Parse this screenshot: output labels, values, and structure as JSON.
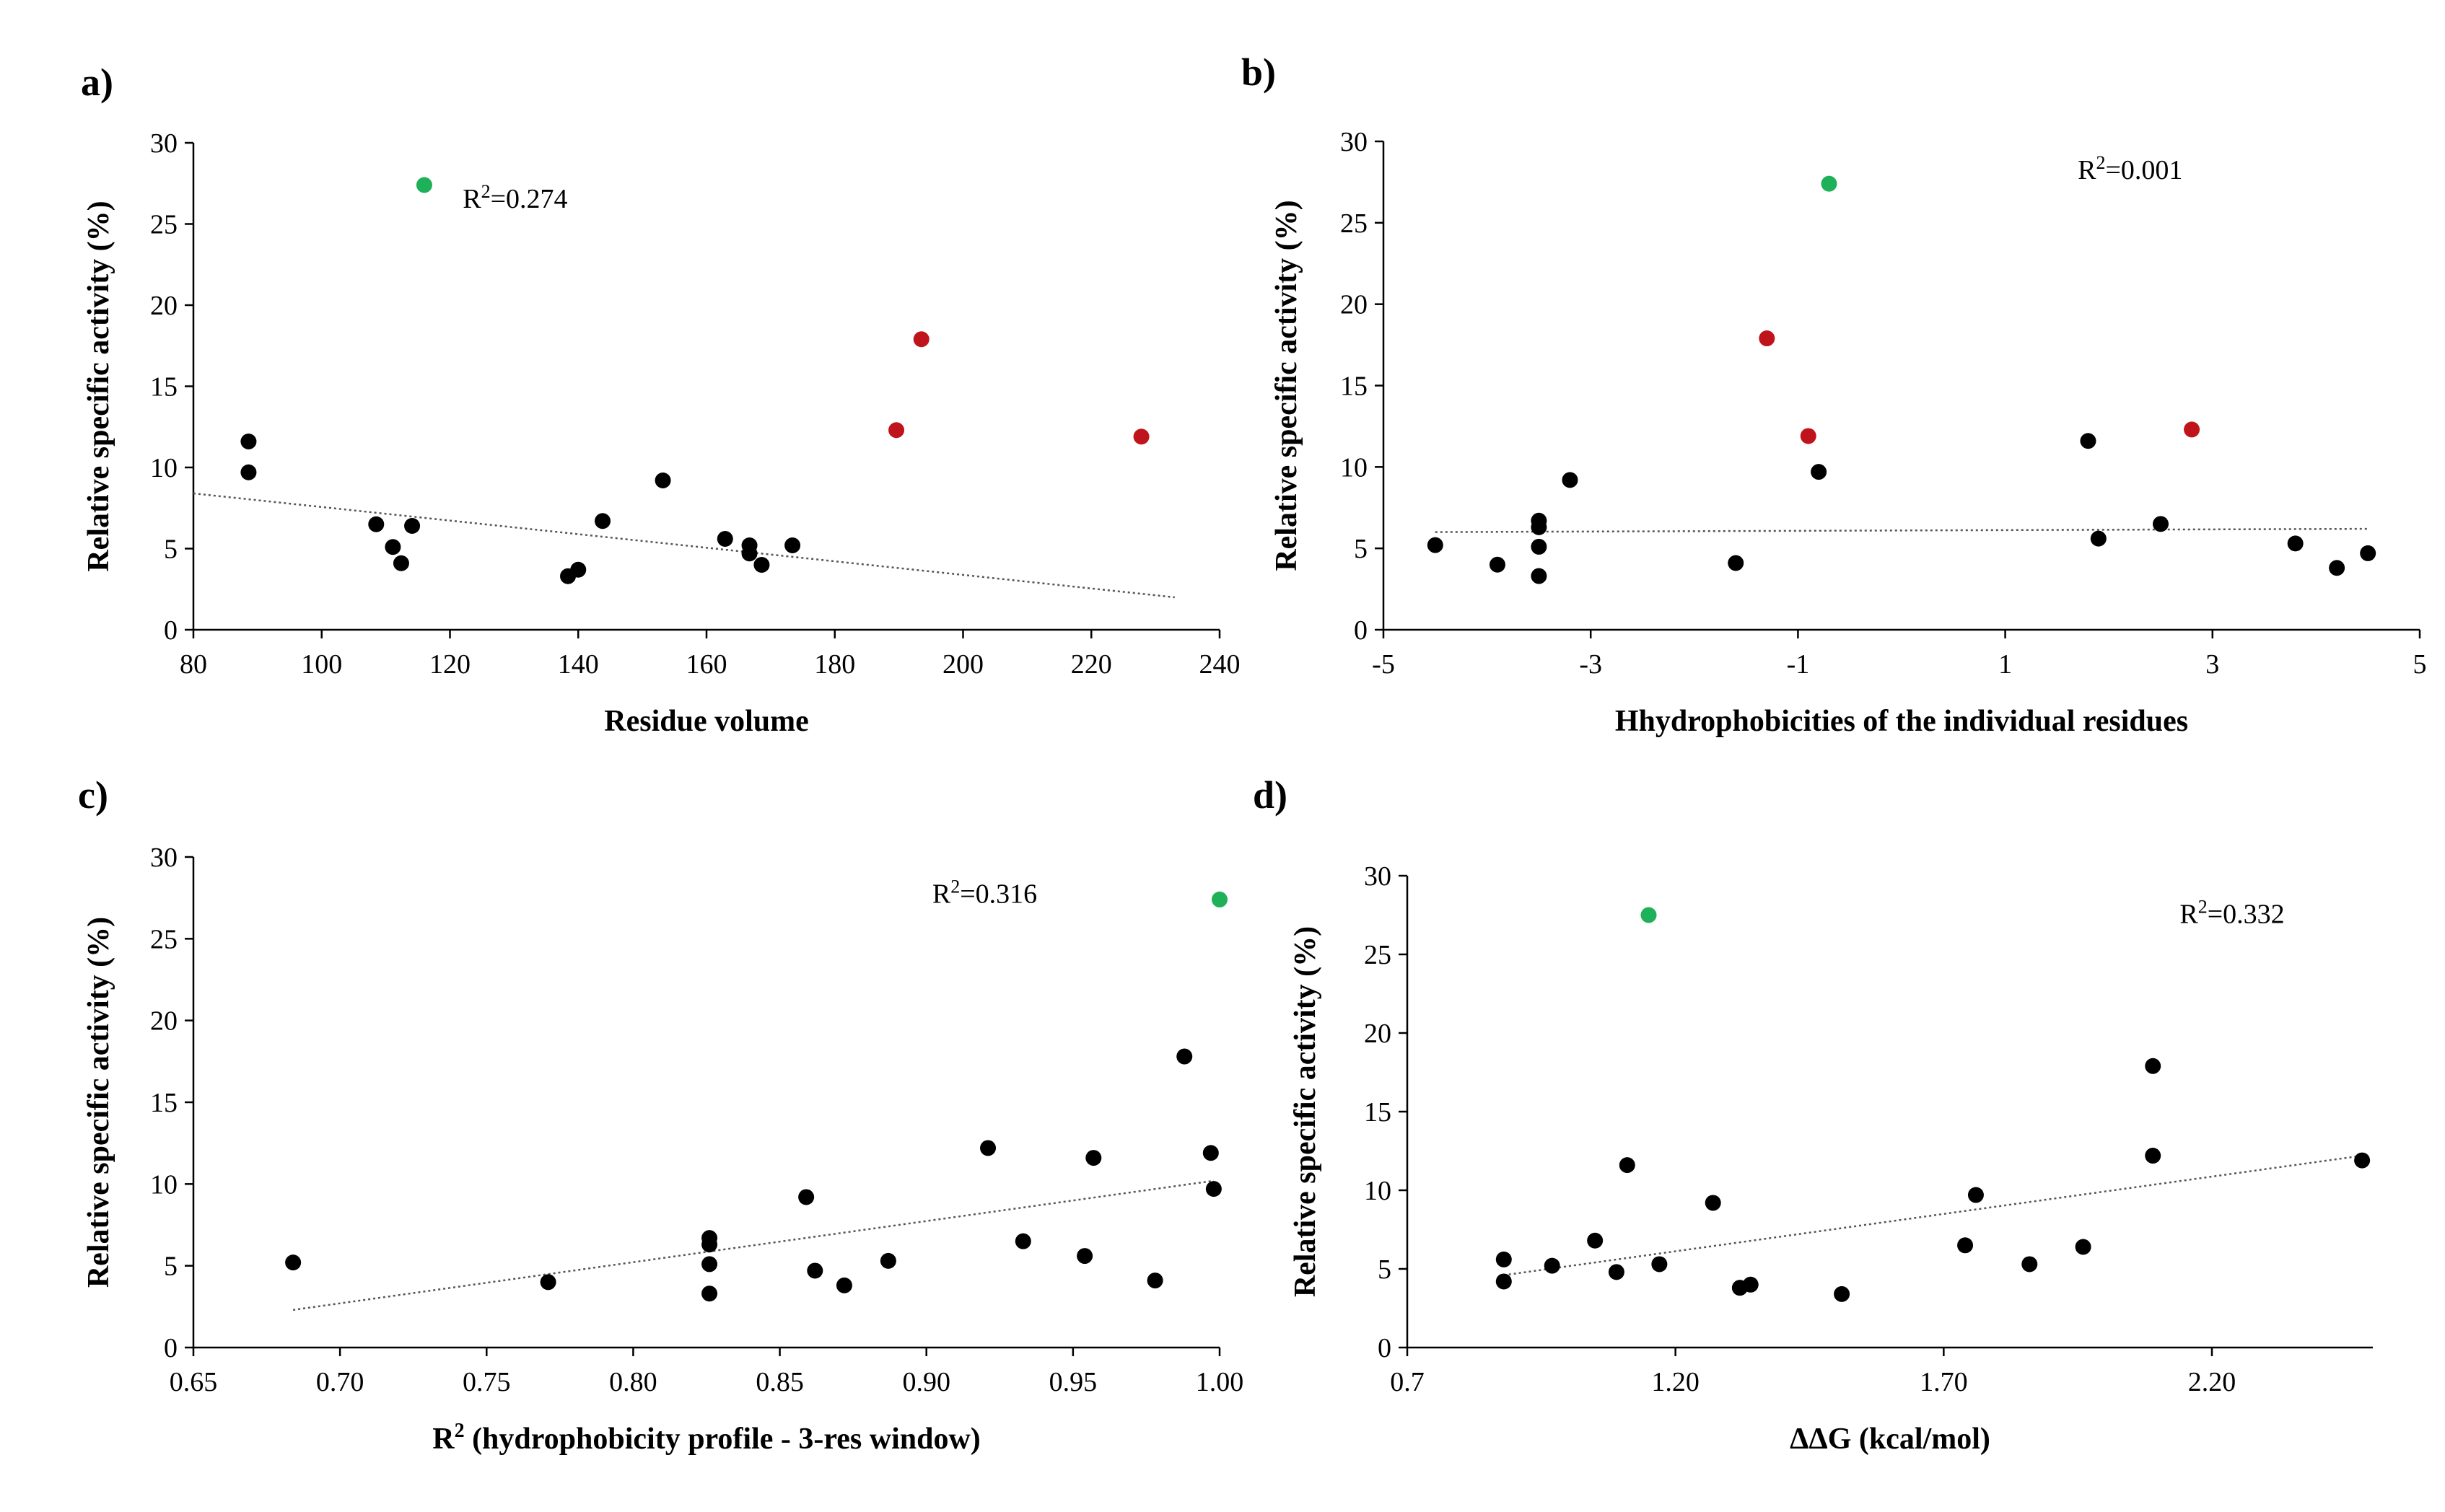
{
  "figure": {
    "colors": {
      "default": "#000000",
      "green": "#1fb15a",
      "red": "#c0141c",
      "trend": "#555555"
    }
  },
  "chart_data": [
    {
      "type": "scatter",
      "panel_label": "a)",
      "xlabel": "Residue volume",
      "ylabel": "Relative specific activity (%)",
      "xlim": [
        80,
        240
      ],
      "ylim": [
        0,
        30
      ],
      "xticks": [
        80,
        100,
        120,
        140,
        160,
        180,
        200,
        220,
        240
      ],
      "xtick_labels": [
        "80",
        "100",
        "120",
        "140",
        "160",
        "180",
        "200",
        "220",
        "240"
      ],
      "yticks": [
        0,
        5,
        10,
        15,
        20,
        25,
        30
      ],
      "ytick_labels": [
        "0",
        "5",
        "10",
        "15",
        "20",
        "25",
        "30"
      ],
      "r2_prefix": "R",
      "r2_exp": "2",
      "r2_value": "=0.274",
      "r2_pos": [
        122,
        26
      ],
      "trendline": {
        "x": [
          80,
          233
        ],
        "y": [
          8.4,
          2.0
        ]
      },
      "points": [
        {
          "x": 116,
          "y": 27.4,
          "color": "green"
        },
        {
          "x": 193.5,
          "y": 17.9,
          "color": "red"
        },
        {
          "x": 189.6,
          "y": 12.3,
          "color": "red"
        },
        {
          "x": 227.8,
          "y": 11.9,
          "color": "red"
        },
        {
          "x": 88.6,
          "y": 11.6,
          "color": "default"
        },
        {
          "x": 88.6,
          "y": 9.7,
          "color": "default"
        },
        {
          "x": 108.5,
          "y": 6.5,
          "color": "default"
        },
        {
          "x": 111.1,
          "y": 5.1,
          "color": "default"
        },
        {
          "x": 112.4,
          "y": 4.1,
          "color": "default"
        },
        {
          "x": 114.1,
          "y": 6.4,
          "color": "default"
        },
        {
          "x": 138.4,
          "y": 3.3,
          "color": "default"
        },
        {
          "x": 140.0,
          "y": 3.7,
          "color": "default"
        },
        {
          "x": 143.8,
          "y": 6.7,
          "color": "default"
        },
        {
          "x": 153.2,
          "y": 9.2,
          "color": "default"
        },
        {
          "x": 162.9,
          "y": 5.6,
          "color": "default"
        },
        {
          "x": 166.7,
          "y": 5.2,
          "color": "default"
        },
        {
          "x": 166.7,
          "y": 4.7,
          "color": "default"
        },
        {
          "x": 168.6,
          "y": 4.0,
          "color": "default"
        },
        {
          "x": 173.4,
          "y": 5.2,
          "color": "default"
        }
      ]
    },
    {
      "type": "scatter",
      "panel_label": "b)",
      "xlabel": "Hhydrophobicities of the individual residues",
      "ylabel": "Relative specific activity (%)",
      "xlim": [
        -5,
        5
      ],
      "ylim": [
        0,
        30
      ],
      "xticks": [
        -5,
        -3,
        -1,
        1,
        3,
        5
      ],
      "xtick_labels": [
        "-5",
        "-3",
        "-1",
        "1",
        "3",
        "5"
      ],
      "yticks": [
        0,
        5,
        10,
        15,
        20,
        25,
        30
      ],
      "ytick_labels": [
        "0",
        "5",
        "10",
        "15",
        "20",
        "25",
        "30"
      ],
      "r2_prefix": "R",
      "r2_exp": "2",
      "r2_value": "=0.001",
      "r2_pos": [
        1.7,
        27.7
      ],
      "trendline": {
        "x": [
          -4.5,
          4.5
        ],
        "y": [
          6.0,
          6.2
        ]
      },
      "points": [
        {
          "x": -0.7,
          "y": 27.4,
          "color": "green"
        },
        {
          "x": -1.3,
          "y": 17.9,
          "color": "red"
        },
        {
          "x": -0.9,
          "y": 11.9,
          "color": "red"
        },
        {
          "x": 2.8,
          "y": 12.3,
          "color": "red"
        },
        {
          "x": -4.5,
          "y": 5.2,
          "color": "default"
        },
        {
          "x": -3.9,
          "y": 4.0,
          "color": "default"
        },
        {
          "x": -3.5,
          "y": 6.7,
          "color": "default"
        },
        {
          "x": -3.5,
          "y": 6.3,
          "color": "default"
        },
        {
          "x": -3.5,
          "y": 5.1,
          "color": "default"
        },
        {
          "x": -3.5,
          "y": 3.3,
          "color": "default"
        },
        {
          "x": -3.2,
          "y": 9.2,
          "color": "default"
        },
        {
          "x": -1.6,
          "y": 4.1,
          "color": "default"
        },
        {
          "x": -0.8,
          "y": 9.7,
          "color": "default"
        },
        {
          "x": 1.8,
          "y": 11.6,
          "color": "default"
        },
        {
          "x": 1.9,
          "y": 5.6,
          "color": "default"
        },
        {
          "x": 2.5,
          "y": 6.5,
          "color": "default"
        },
        {
          "x": 3.8,
          "y": 5.3,
          "color": "default"
        },
        {
          "x": 4.2,
          "y": 3.8,
          "color": "default"
        },
        {
          "x": 4.5,
          "y": 4.7,
          "color": "default"
        }
      ]
    },
    {
      "type": "scatter",
      "panel_label": "c)",
      "xlabel": "R",
      "xlabel_sup": "2",
      "xlabel_rest": " (hydrophobicity profile - 3-res window)",
      "ylabel": "Relative specific activity (%)",
      "xlim": [
        0.65,
        1.0
      ],
      "ylim": [
        0,
        30
      ],
      "xticks": [
        0.65,
        0.7,
        0.75,
        0.8,
        0.85,
        0.9,
        0.95,
        1.0
      ],
      "xtick_labels": [
        "0.65",
        "0.70",
        "0.75",
        "0.80",
        "0.85",
        "0.90",
        "0.95",
        "1.00"
      ],
      "yticks": [
        0,
        5,
        10,
        15,
        20,
        25,
        30
      ],
      "ytick_labels": [
        "0",
        "5",
        "10",
        "15",
        "20",
        "25",
        "30"
      ],
      "r2_prefix": "R",
      "r2_exp": "2",
      "r2_value": "=0.316",
      "r2_pos": [
        0.902,
        27.2
      ],
      "trendline": {
        "x": [
          0.684,
          0.998
        ],
        "y": [
          2.3,
          10.2
        ]
      },
      "points": [
        {
          "x": 1.0,
          "y": 27.4,
          "color": "green"
        },
        {
          "x": 0.988,
          "y": 17.8,
          "color": "default"
        },
        {
          "x": 0.921,
          "y": 12.2,
          "color": "default"
        },
        {
          "x": 0.957,
          "y": 11.6,
          "color": "default"
        },
        {
          "x": 0.997,
          "y": 11.9,
          "color": "default"
        },
        {
          "x": 0.998,
          "y": 9.7,
          "color": "default"
        },
        {
          "x": 0.859,
          "y": 9.2,
          "color": "default"
        },
        {
          "x": 0.684,
          "y": 5.2,
          "color": "default"
        },
        {
          "x": 0.771,
          "y": 4.0,
          "color": "default"
        },
        {
          "x": 0.826,
          "y": 6.7,
          "color": "default"
        },
        {
          "x": 0.826,
          "y": 6.3,
          "color": "default"
        },
        {
          "x": 0.826,
          "y": 5.1,
          "color": "default"
        },
        {
          "x": 0.826,
          "y": 3.3,
          "color": "default"
        },
        {
          "x": 0.862,
          "y": 4.7,
          "color": "default"
        },
        {
          "x": 0.872,
          "y": 3.8,
          "color": "default"
        },
        {
          "x": 0.887,
          "y": 5.3,
          "color": "default"
        },
        {
          "x": 0.933,
          "y": 6.5,
          "color": "default"
        },
        {
          "x": 0.954,
          "y": 5.6,
          "color": "default"
        },
        {
          "x": 0.978,
          "y": 4.1,
          "color": "default"
        }
      ]
    },
    {
      "type": "scatter",
      "panel_label": "d)",
      "xlabel": "ΔΔG (kcal/mol)",
      "ylabel": "Relative specific activity (%)",
      "xlim": [
        0.7,
        2.5
      ],
      "ylim": [
        0,
        30
      ],
      "xticks": [
        0.7,
        1.2,
        1.7,
        2.2
      ],
      "xtick_labels": [
        "0.7",
        "1.20",
        "1.70",
        "2.20"
      ],
      "yticks": [
        0,
        5,
        10,
        15,
        20,
        25,
        30
      ],
      "ytick_labels": [
        "0",
        "5",
        "10",
        "15",
        "20",
        "25",
        "30"
      ],
      "r2_prefix": "R",
      "r2_exp": "2",
      "r2_value": "=0.332",
      "r2_pos": [
        2.14,
        27.0
      ],
      "trendline": {
        "x": [
          0.88,
          2.48
        ],
        "y": [
          4.6,
          12.2
        ]
      },
      "points": [
        {
          "x": 1.15,
          "y": 27.5,
          "color": "green"
        },
        {
          "x": 2.09,
          "y": 17.9,
          "color": "default"
        },
        {
          "x": 2.09,
          "y": 12.2,
          "color": "default"
        },
        {
          "x": 2.48,
          "y": 11.9,
          "color": "default"
        },
        {
          "x": 1.11,
          "y": 11.6,
          "color": "default"
        },
        {
          "x": 1.76,
          "y": 9.7,
          "color": "default"
        },
        {
          "x": 1.27,
          "y": 9.2,
          "color": "default"
        },
        {
          "x": 1.05,
          "y": 6.8,
          "color": "default"
        },
        {
          "x": 1.74,
          "y": 6.5,
          "color": "default"
        },
        {
          "x": 1.96,
          "y": 6.4,
          "color": "default"
        },
        {
          "x": 0.88,
          "y": 5.6,
          "color": "default"
        },
        {
          "x": 0.97,
          "y": 5.2,
          "color": "default"
        },
        {
          "x": 1.17,
          "y": 5.3,
          "color": "default"
        },
        {
          "x": 1.86,
          "y": 5.3,
          "color": "default"
        },
        {
          "x": 1.09,
          "y": 4.8,
          "color": "default"
        },
        {
          "x": 0.88,
          "y": 4.2,
          "color": "default"
        },
        {
          "x": 1.32,
          "y": 3.8,
          "color": "default"
        },
        {
          "x": 1.34,
          "y": 4.0,
          "color": "default"
        },
        {
          "x": 1.51,
          "y": 3.4,
          "color": "default"
        }
      ]
    }
  ]
}
